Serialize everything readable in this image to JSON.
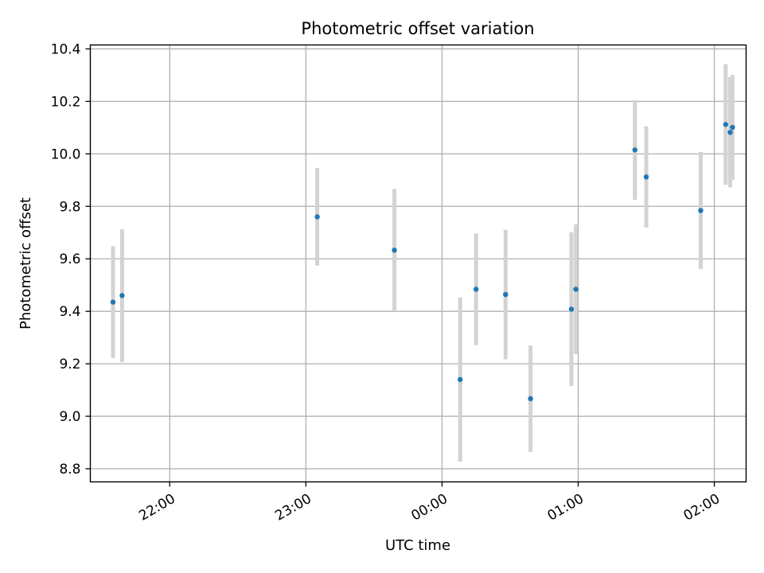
{
  "chart_data": {
    "type": "scatter",
    "title": "Photometric offset variation",
    "xlabel": "UTC time",
    "ylabel": "Photometric offset",
    "x_tick_labels": [
      "22:00",
      "23:00",
      "00:00",
      "01:00",
      "02:00"
    ],
    "x_tick_times": [
      "22:00",
      "23:00",
      "00:00",
      "01:00",
      "02:00"
    ],
    "xlim": [
      "21:25",
      "02:14"
    ],
    "ylim": [
      8.75,
      10.415
    ],
    "y_ticks": [
      8.8,
      9.0,
      9.2,
      9.4,
      9.6,
      9.8,
      10.0,
      10.2,
      10.4
    ],
    "grid": true,
    "colors": {
      "point": "#1f77b4",
      "errorbar": "#d3d3d3",
      "grid": "#b0b0b0",
      "axis": "#000000"
    },
    "points": [
      {
        "time": "21:35",
        "y": 9.435,
        "yerr": 0.213
      },
      {
        "time": "21:39",
        "y": 9.46,
        "yerr": 0.253
      },
      {
        "time": "23:05",
        "y": 9.76,
        "yerr": 0.186
      },
      {
        "time": "23:39",
        "y": 9.633,
        "yerr": 0.233
      },
      {
        "time": "00:08",
        "y": 9.14,
        "yerr": 0.313
      },
      {
        "time": "00:15",
        "y": 9.484,
        "yerr": 0.213
      },
      {
        "time": "00:28",
        "y": 9.464,
        "yerr": 0.247
      },
      {
        "time": "00:39",
        "y": 9.067,
        "yerr": 0.203
      },
      {
        "time": "00:57",
        "y": 9.408,
        "yerr": 0.293
      },
      {
        "time": "00:59",
        "y": 9.484,
        "yerr": 0.247
      },
      {
        "time": "01:25",
        "y": 10.015,
        "yerr": 0.19
      },
      {
        "time": "01:30",
        "y": 9.912,
        "yerr": 0.193
      },
      {
        "time": "01:54",
        "y": 9.784,
        "yerr": 0.223
      },
      {
        "time": "02:05",
        "y": 10.112,
        "yerr": 0.23
      },
      {
        "time": "02:07",
        "y": 10.082,
        "yerr": 0.21
      },
      {
        "time": "02:08",
        "y": 10.101,
        "yerr": 0.2
      }
    ]
  }
}
